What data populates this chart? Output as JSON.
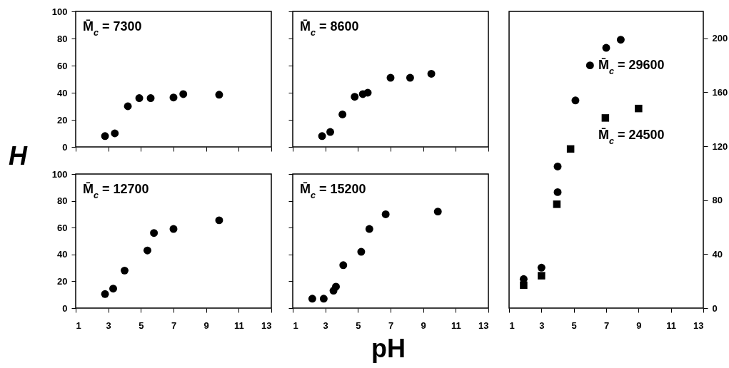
{
  "chart_data": [
    {
      "type": "scatter",
      "ylabel": "H",
      "xlim": [
        1,
        13
      ],
      "xticks": [
        1,
        3,
        5,
        7,
        9,
        11,
        13
      ],
      "ylim": [
        0,
        100
      ],
      "yticks": [
        0,
        20,
        40,
        60,
        80,
        100
      ],
      "tick_labels": "y",
      "marker": "circle",
      "series": [
        {
          "name": "M̄$_{c}$ = 7300",
          "color": "#000000",
          "x": [
            2.8,
            3.4,
            4.2,
            4.9,
            5.6,
            7.0,
            7.6,
            9.8
          ],
          "values": [
            8,
            10,
            30,
            36,
            36,
            36.5,
            39,
            38.5
          ]
        }
      ]
    },
    {
      "type": "scatter",
      "xlim": [
        1,
        13
      ],
      "xticks": [
        1,
        3,
        5,
        7,
        9,
        11,
        13
      ],
      "ylim": [
        0,
        100
      ],
      "yticks": [
        0,
        20,
        40,
        60,
        80,
        100
      ],
      "tick_labels": false,
      "marker": "circle",
      "series": [
        {
          "name": "M̄$_{c}$ = 8600",
          "color": "#000000",
          "x": [
            2.8,
            3.3,
            4.05,
            4.8,
            5.3,
            5.6,
            7.0,
            8.2,
            9.5
          ],
          "values": [
            8,
            11,
            24,
            37,
            39,
            40,
            51,
            51,
            54
          ]
        }
      ]
    },
    {
      "type": "scatter",
      "xlim": [
        1,
        13
      ],
      "xticks": [
        1,
        3,
        5,
        7,
        9,
        11,
        13
      ],
      "ylim": [
        0,
        100
      ],
      "yticks": [
        0,
        20,
        40,
        60,
        80,
        100
      ],
      "marker": "circle",
      "series": [
        {
          "name": "M̄$_{c}$ = 12700",
          "color": "#000000",
          "x": [
            2.8,
            3.3,
            4.0,
            5.4,
            5.8,
            7.0,
            9.8
          ],
          "values": [
            10.5,
            14.5,
            28,
            43,
            56,
            59,
            65.5
          ]
        }
      ]
    },
    {
      "type": "scatter",
      "xlabel": "pH",
      "xlim": [
        1,
        13
      ],
      "xticks": [
        1,
        3,
        5,
        7,
        9,
        11,
        13
      ],
      "ylim": [
        0,
        100
      ],
      "yticks": [
        0,
        20,
        40,
        60,
        80,
        100
      ],
      "tick_labels": "x",
      "marker": "circle",
      "series": [
        {
          "name": "M̄$_{c}$ = 15200",
          "color": "#000000",
          "x": [
            2.2,
            2.9,
            3.5,
            3.65,
            4.1,
            5.2,
            5.7,
            6.7,
            9.9
          ],
          "values": [
            7,
            7,
            13,
            16,
            32,
            42,
            59,
            70,
            72
          ]
        }
      ]
    },
    {
      "type": "scatter",
      "xlim": [
        1,
        13
      ],
      "xticks": [
        1,
        3,
        5,
        7,
        9,
        11,
        13
      ],
      "y2lim": [
        0,
        220
      ],
      "y2ticks": [
        0,
        40,
        80,
        120,
        160,
        200
      ],
      "series": [
        {
          "name": "M̄$_{c}$ = 29600",
          "color": "#000000",
          "marker": "circle",
          "axis": "y2",
          "x": [
            1.9,
            3.0,
            4.0,
            4.0,
            5.1,
            6.0,
            7.0,
            7.9
          ],
          "values": [
            21.5,
            30,
            86,
            105,
            154,
            180,
            193,
            199
          ]
        },
        {
          "name": "M̄$_{c}$ = 24500",
          "color": "#000000",
          "marker": "square",
          "axis": "y2",
          "x": [
            1.9,
            3.0,
            3.95,
            4.8,
            6.95,
            9.0
          ],
          "values": [
            17,
            24,
            77,
            118,
            141,
            148
          ]
        }
      ]
    }
  ]
}
